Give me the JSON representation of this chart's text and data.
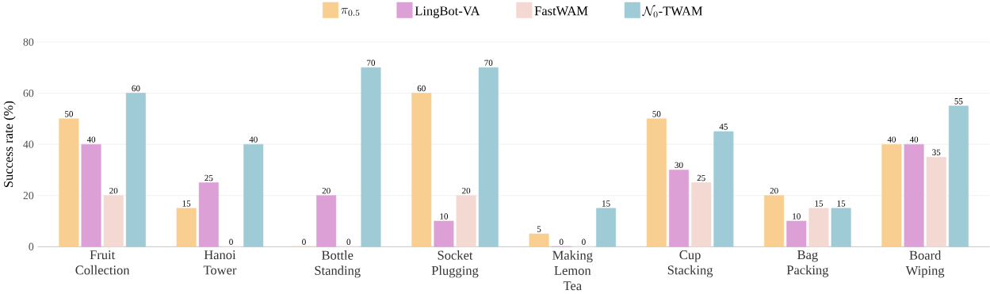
{
  "chart_data": {
    "type": "bar",
    "ylabel": "Success rate (%)",
    "categories": [
      "Fruit Collection",
      "Hanoi Tower",
      "Bottle Standing",
      "Socket Plugging",
      "Making Lemon Tea",
      "Cup Stacking",
      "Bag Packing",
      "Board Wiping"
    ],
    "series": [
      {
        "name": "\\pi_{0.5}",
        "color": "#f8cf90",
        "values": [
          50,
          15,
          0,
          60,
          5,
          50,
          20,
          40
        ]
      },
      {
        "name": "\\text{LingBot-VA}",
        "color": "#dda0d6",
        "values": [
          40,
          25,
          20,
          10,
          0,
          30,
          10,
          40
        ]
      },
      {
        "name": "\\text{FastWAM}",
        "color": "#f4d9d3",
        "values": [
          20,
          0,
          0,
          20,
          0,
          25,
          15,
          35
        ]
      },
      {
        "name": "\\mathcal{N}_0\\text{-TWAM}",
        "color": "#9ecbd6",
        "values": [
          60,
          40,
          70,
          70,
          15,
          45,
          15,
          55
        ]
      }
    ],
    "ylim": [
      0,
      80
    ],
    "yticks": [
      0,
      20,
      40,
      60,
      80
    ],
    "grid": "y",
    "legend": "top",
    "data_labels": true
  }
}
